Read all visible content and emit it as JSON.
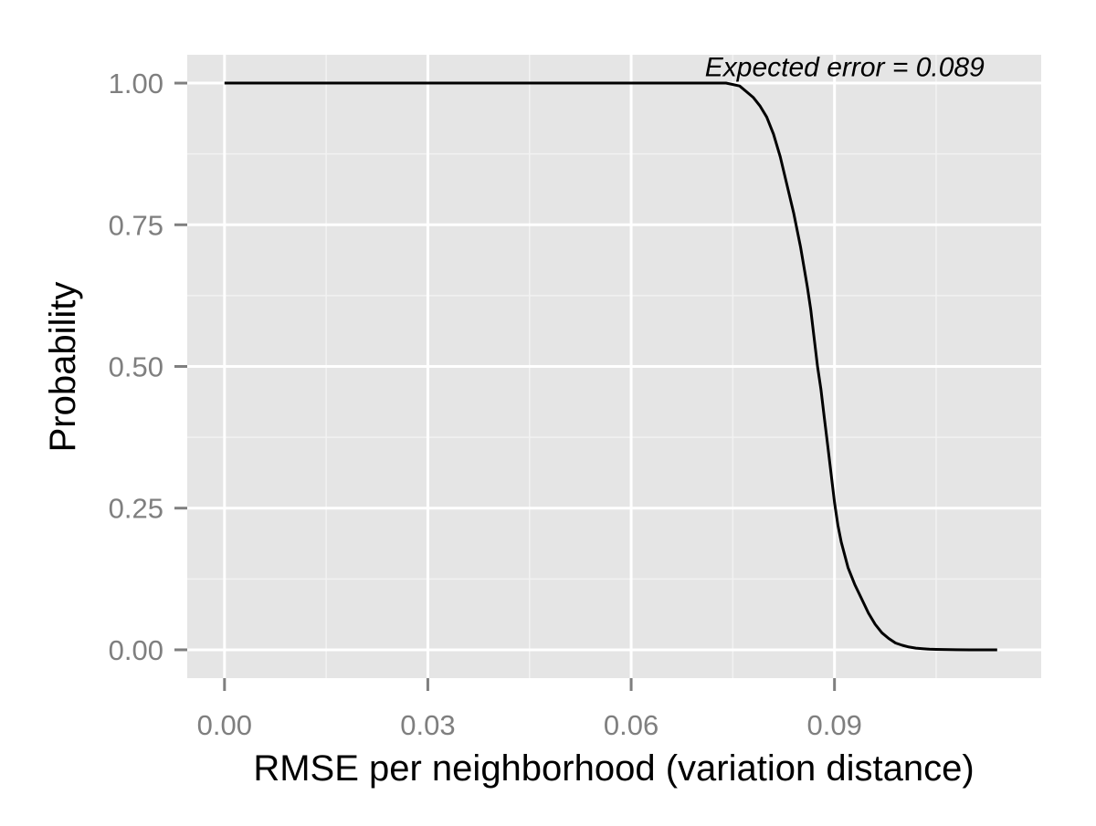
{
  "chart_data": {
    "type": "line",
    "title": "",
    "xlabel": "RMSE per neighborhood (variation distance)",
    "ylabel": "Probability",
    "xlim": [
      -0.0055,
      0.1205
    ],
    "ylim": [
      -0.05,
      1.05
    ],
    "x_ticks": [
      0.0,
      0.03,
      0.06,
      0.09
    ],
    "x_tick_labels": [
      "0.00",
      "0.03",
      "0.06",
      "0.09"
    ],
    "y_ticks": [
      0.0,
      0.25,
      0.5,
      0.75,
      1.0
    ],
    "y_tick_labels": [
      "0.00",
      "0.25",
      "0.50",
      "0.75",
      "1.00"
    ],
    "x_minor_ticks": [
      0.015,
      0.045,
      0.075,
      0.105
    ],
    "y_minor_ticks": [
      0.125,
      0.375,
      0.625,
      0.875
    ],
    "grid": true,
    "legend": "none",
    "annotation": {
      "text": "Expected error = 0.089",
      "x": 0.0915,
      "y": 1.012
    },
    "colors": {
      "panel_background": "#e5e5e5",
      "grid_major": "#ffffff",
      "grid_minor": "#f2f2f2",
      "line": "#000000",
      "tick_label": "#7f7f7f"
    },
    "series": [
      {
        "x": [
          0.0,
          0.02,
          0.04,
          0.06,
          0.07,
          0.074,
          0.076,
          0.077,
          0.078,
          0.079,
          0.08,
          0.081,
          0.082,
          0.083,
          0.084,
          0.085,
          0.086,
          0.0865,
          0.087,
          0.0875,
          0.088,
          0.0885,
          0.089,
          0.0895,
          0.09,
          0.0905,
          0.091,
          0.092,
          0.093,
          0.094,
          0.095,
          0.096,
          0.097,
          0.098,
          0.099,
          0.1,
          0.101,
          0.102,
          0.103,
          0.104,
          0.105,
          0.106,
          0.107,
          0.108,
          0.11,
          0.112,
          0.114
        ],
        "y": [
          1.0,
          1.0,
          1.0,
          1.0,
          1.0,
          1.0,
          0.995,
          0.985,
          0.975,
          0.96,
          0.94,
          0.91,
          0.87,
          0.82,
          0.77,
          0.71,
          0.64,
          0.6,
          0.55,
          0.5,
          0.46,
          0.41,
          0.36,
          0.31,
          0.26,
          0.22,
          0.19,
          0.145,
          0.115,
          0.09,
          0.065,
          0.045,
          0.03,
          0.02,
          0.012,
          0.008,
          0.005,
          0.003,
          0.002,
          0.001,
          0.0008,
          0.0005,
          0.0003,
          0.0001,
          0.0,
          0.0,
          0.0
        ]
      }
    ]
  }
}
